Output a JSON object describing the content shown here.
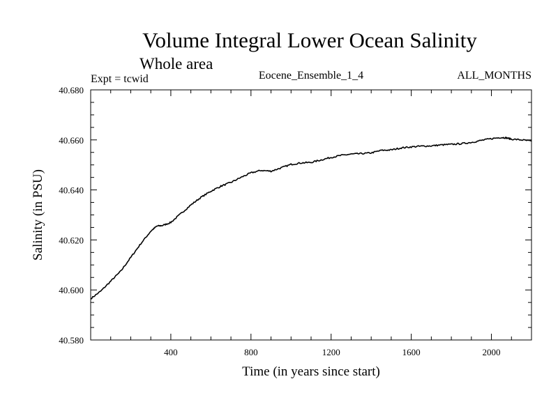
{
  "chart_data": {
    "type": "line",
    "title": "Volume Integral Lower Ocean Salinity",
    "subtitle": "Whole area",
    "left_note": "Expt = tcwid",
    "center_note": "Eocene_Ensemble_1_4",
    "right_note": "ALL_MONTHS",
    "xlabel": "Time (in years since start)",
    "ylabel": "Salinity (in PSU)",
    "xlim": [
      0,
      2200
    ],
    "ylim": [
      40.58,
      40.68
    ],
    "xticks": [
      400,
      800,
      1200,
      1600,
      2000
    ],
    "xtick_labels": [
      "400",
      "800",
      "1200",
      "1600",
      "2000"
    ],
    "yticks": [
      40.58,
      40.6,
      40.62,
      40.64,
      40.66,
      40.68
    ],
    "ytick_labels": [
      "40.580",
      "40.600",
      "40.620",
      "40.640",
      "40.660",
      "40.680"
    ],
    "grid": false,
    "series": [
      {
        "x": [
          0,
          50,
          100,
          150,
          200,
          250,
          300,
          330,
          360,
          400,
          450,
          500,
          550,
          600,
          650,
          700,
          750,
          800,
          850,
          900,
          950,
          1000,
          1050,
          1100,
          1150,
          1200,
          1250,
          1300,
          1350,
          1400,
          1450,
          1500,
          1550,
          1600,
          1650,
          1700,
          1750,
          1800,
          1850,
          1900,
          1950,
          2000,
          2050,
          2075,
          2100,
          2150,
          2200
        ],
        "y": [
          40.5965,
          40.5995,
          40.6035,
          40.6075,
          40.613,
          40.6185,
          40.6235,
          40.6255,
          40.6258,
          40.627,
          40.6305,
          40.634,
          40.637,
          40.6395,
          40.6415,
          40.643,
          40.645,
          40.6468,
          40.6478,
          40.6475,
          40.6488,
          40.6502,
          40.6508,
          40.651,
          40.652,
          40.653,
          40.6538,
          40.6543,
          40.6545,
          40.6548,
          40.6558,
          40.656,
          40.6568,
          40.6572,
          40.6575,
          40.6576,
          40.658,
          40.6582,
          40.6585,
          40.659,
          40.6598,
          40.6605,
          40.661,
          40.6608,
          40.6603,
          40.66,
          40.6595
        ]
      }
    ]
  }
}
